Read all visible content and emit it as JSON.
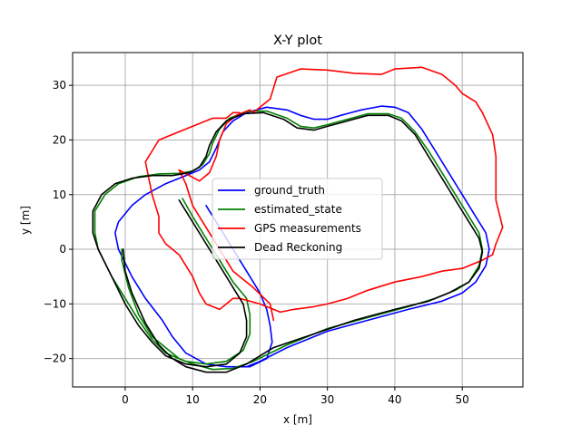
{
  "chart_data": {
    "type": "line",
    "title": "X-Y plot",
    "xlabel": "x [m]",
    "ylabel": "y [m]",
    "xlim": [
      -7.8,
      59
    ],
    "ylim": [
      -25.2,
      36
    ],
    "xticks": [
      0,
      10,
      20,
      30,
      40,
      50
    ],
    "yticks": [
      -20,
      -10,
      0,
      10,
      20,
      30
    ],
    "grid": true,
    "legend_position": "center",
    "series": [
      {
        "name": "ground_truth",
        "color": "#0000ff",
        "points": [
          [
            12,
            8
          ],
          [
            14,
            4
          ],
          [
            16,
            0
          ],
          [
            18,
            -4
          ],
          [
            20,
            -8
          ],
          [
            21,
            -11
          ],
          [
            21.5,
            -14
          ],
          [
            21.8,
            -17
          ],
          [
            21,
            -20
          ],
          [
            18.5,
            -21.5
          ],
          [
            15,
            -21.5
          ],
          [
            12,
            -21
          ],
          [
            9,
            -19
          ],
          [
            7,
            -16
          ],
          [
            5.5,
            -13
          ],
          [
            3,
            -9
          ],
          [
            1,
            -5
          ],
          [
            -1,
            0
          ],
          [
            -1.5,
            3
          ],
          [
            -1,
            5
          ],
          [
            1,
            8
          ],
          [
            3,
            10
          ],
          [
            6,
            12
          ],
          [
            9,
            13.5
          ],
          [
            11,
            14.5
          ],
          [
            12.5,
            16
          ],
          [
            13.5,
            18.5
          ],
          [
            14.5,
            21.5
          ],
          [
            16,
            23.5
          ],
          [
            18,
            25
          ],
          [
            21,
            26
          ],
          [
            24,
            25.5
          ],
          [
            26,
            24.5
          ],
          [
            28,
            23.8
          ],
          [
            30,
            23.8
          ],
          [
            32,
            24.5
          ],
          [
            35,
            25.5
          ],
          [
            38,
            26.2
          ],
          [
            40,
            26
          ],
          [
            42,
            25
          ],
          [
            44,
            22
          ],
          [
            46,
            18
          ],
          [
            48,
            14
          ],
          [
            50,
            10
          ],
          [
            52,
            6
          ],
          [
            53.5,
            3
          ],
          [
            54,
            0
          ],
          [
            53.5,
            -3
          ],
          [
            52,
            -6
          ],
          [
            50,
            -8
          ],
          [
            47,
            -9.5
          ],
          [
            42,
            -11
          ],
          [
            36,
            -13
          ],
          [
            30,
            -15
          ],
          [
            24,
            -18
          ],
          [
            20,
            -20.5
          ],
          [
            18,
            -21.5
          ]
        ]
      },
      {
        "name": "estimated_state",
        "color": "#008000",
        "points": [
          [
            8.5,
            9.3
          ],
          [
            10,
            6
          ],
          [
            12,
            2
          ],
          [
            14,
            -2
          ],
          [
            16,
            -6
          ],
          [
            18,
            -9
          ],
          [
            18.5,
            -12
          ],
          [
            18.5,
            -15.5
          ],
          [
            17.5,
            -18.5
          ],
          [
            15,
            -20.5
          ],
          [
            12,
            -21
          ],
          [
            9,
            -20.5
          ],
          [
            6,
            -19
          ],
          [
            4,
            -16.5
          ],
          [
            2,
            -13
          ],
          [
            0,
            -9
          ],
          [
            -2,
            -5
          ],
          [
            -4,
            0
          ],
          [
            -4.5,
            3
          ],
          [
            -4.5,
            7
          ],
          [
            -3,
            10
          ],
          [
            -1,
            12
          ],
          [
            2,
            13.3
          ],
          [
            5,
            13.8
          ],
          [
            8,
            13.9
          ],
          [
            10,
            14.3
          ],
          [
            11.5,
            15.5
          ],
          [
            12.5,
            17.5
          ],
          [
            13,
            19.5
          ],
          [
            14,
            22
          ],
          [
            15.5,
            24
          ],
          [
            18,
            25.2
          ],
          [
            21,
            25.3
          ],
          [
            24,
            24
          ],
          [
            26,
            22.5
          ],
          [
            28,
            22.2
          ],
          [
            30,
            22.8
          ],
          [
            33,
            23.8
          ],
          [
            36,
            24.8
          ],
          [
            39,
            24.8
          ],
          [
            41,
            24
          ],
          [
            43,
            21.5
          ],
          [
            45,
            18
          ],
          [
            47,
            14
          ],
          [
            49,
            10
          ],
          [
            51,
            6
          ],
          [
            52.5,
            3
          ],
          [
            53,
            0
          ],
          [
            52.5,
            -3
          ],
          [
            51,
            -6
          ],
          [
            49,
            -7.5
          ],
          [
            46,
            -9
          ],
          [
            42,
            -10.5
          ],
          [
            36,
            -12.5
          ],
          [
            30,
            -14.5
          ],
          [
            24,
            -17.5
          ],
          [
            19,
            -20.5
          ],
          [
            16,
            -21.8
          ],
          [
            13,
            -22
          ],
          [
            10,
            -21
          ],
          [
            8,
            -20
          ],
          [
            6,
            -18
          ],
          [
            4,
            -16
          ],
          [
            2,
            -12
          ],
          [
            0.5,
            -7
          ],
          [
            -0.5,
            -2
          ],
          [
            -0.5,
            0
          ]
        ]
      },
      {
        "name": "GPS measurements",
        "color": "#ff0000",
        "points": [
          [
            22,
            -13
          ],
          [
            21.5,
            -10
          ],
          [
            19,
            -7
          ],
          [
            16,
            -4
          ],
          [
            14,
            0
          ],
          [
            12,
            4
          ],
          [
            10,
            8
          ],
          [
            9,
            12
          ],
          [
            8,
            14.5
          ],
          [
            9.5,
            13.5
          ],
          [
            11,
            12.5
          ],
          [
            12.5,
            14
          ],
          [
            13.5,
            17
          ],
          [
            14,
            20
          ],
          [
            15,
            23
          ],
          [
            16.5,
            24.5
          ],
          [
            18.5,
            25.5
          ],
          [
            19,
            25
          ],
          [
            20,
            26
          ],
          [
            21.5,
            27.5
          ],
          [
            22.5,
            31.5
          ],
          [
            26,
            33
          ],
          [
            30,
            32.8
          ],
          [
            34,
            32.2
          ],
          [
            38,
            32
          ],
          [
            40,
            33
          ],
          [
            44,
            33.3
          ],
          [
            47,
            32
          ],
          [
            49,
            30
          ],
          [
            50,
            28.5
          ],
          [
            52,
            27
          ],
          [
            53,
            25
          ],
          [
            54.5,
            21
          ],
          [
            55,
            17
          ],
          [
            55,
            13
          ],
          [
            55,
            9
          ],
          [
            56,
            4
          ],
          [
            55,
            1
          ],
          [
            54.5,
            -1
          ],
          [
            53,
            -2
          ],
          [
            50,
            -3.5
          ],
          [
            47,
            -4
          ],
          [
            44,
            -5
          ],
          [
            40,
            -6
          ],
          [
            36,
            -7.5
          ],
          [
            33,
            -9
          ],
          [
            30,
            -10
          ],
          [
            28,
            -10.5
          ],
          [
            25,
            -11
          ],
          [
            23,
            -11.5
          ],
          [
            20,
            -10
          ],
          [
            17,
            -9
          ],
          [
            16,
            -9
          ],
          [
            15,
            -10
          ],
          [
            14,
            -11
          ],
          [
            12,
            -10
          ],
          [
            11,
            -8
          ],
          [
            10,
            -5
          ],
          [
            9,
            -3
          ],
          [
            8,
            -1
          ],
          [
            6,
            1
          ],
          [
            5,
            3
          ],
          [
            5,
            6
          ],
          [
            4,
            10
          ],
          [
            3,
            16
          ],
          [
            4,
            18
          ],
          [
            5,
            20
          ],
          [
            7,
            21
          ],
          [
            9,
            22
          ],
          [
            11,
            23
          ],
          [
            13,
            24
          ],
          [
            15,
            24
          ],
          [
            16,
            25
          ],
          [
            17,
            25
          ]
        ]
      },
      {
        "name": "Dead Reckoning",
        "color": "#000000",
        "points": [
          [
            8,
            9
          ],
          [
            10,
            5
          ],
          [
            12,
            1
          ],
          [
            14,
            -3
          ],
          [
            16,
            -7
          ],
          [
            17.5,
            -10
          ],
          [
            18,
            -13
          ],
          [
            18,
            -16
          ],
          [
            17,
            -19
          ],
          [
            15,
            -21
          ],
          [
            12,
            -21.5
          ],
          [
            9,
            -21
          ],
          [
            6,
            -19.5
          ],
          [
            4,
            -17
          ],
          [
            2,
            -14
          ],
          [
            0,
            -10
          ],
          [
            -2,
            -5
          ],
          [
            -4,
            0
          ],
          [
            -4.8,
            3
          ],
          [
            -4.8,
            7
          ],
          [
            -3.5,
            10
          ],
          [
            -1.5,
            12
          ],
          [
            1,
            13
          ],
          [
            4,
            13.5
          ],
          [
            7,
            13.5
          ],
          [
            9.5,
            14
          ],
          [
            11,
            15
          ],
          [
            12,
            17
          ],
          [
            12.5,
            19
          ],
          [
            13.5,
            21.5
          ],
          [
            15,
            23.5
          ],
          [
            17.5,
            24.8
          ],
          [
            20.5,
            25
          ],
          [
            23.5,
            23.8
          ],
          [
            25.5,
            22.2
          ],
          [
            28,
            21.8
          ],
          [
            30,
            22.5
          ],
          [
            33,
            23.5
          ],
          [
            36,
            24.5
          ],
          [
            39,
            24.5
          ],
          [
            41,
            23.5
          ],
          [
            43,
            21
          ],
          [
            45,
            17
          ],
          [
            47,
            13
          ],
          [
            49,
            9
          ],
          [
            51,
            5
          ],
          [
            52.5,
            2
          ],
          [
            53,
            -0.5
          ],
          [
            52.5,
            -3.5
          ],
          [
            51,
            -6
          ],
          [
            48,
            -8
          ],
          [
            45,
            -9.5
          ],
          [
            40,
            -11
          ],
          [
            34,
            -13
          ],
          [
            28,
            -15.5
          ],
          [
            22,
            -18
          ],
          [
            18,
            -21
          ],
          [
            15,
            -22.5
          ],
          [
            12,
            -22.5
          ],
          [
            9,
            -21.5
          ],
          [
            7,
            -20
          ],
          [
            5,
            -17.5
          ],
          [
            3,
            -13.5
          ],
          [
            1,
            -8
          ],
          [
            0,
            -4
          ],
          [
            -0.3,
            0
          ]
        ]
      }
    ]
  }
}
